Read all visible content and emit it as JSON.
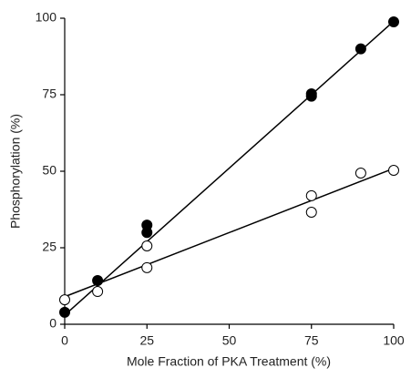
{
  "chart_data": {
    "type": "scatter",
    "x_label": "Mole Fraction of PKA Treatment (%)",
    "y_label": "Phosphorylation (%)",
    "xlim": [
      0,
      100
    ],
    "ylim": [
      0,
      100
    ],
    "xticks": [
      0,
      25,
      50,
      75,
      100
    ],
    "yticks": [
      0,
      25,
      50,
      75,
      100
    ],
    "series": [
      {
        "color": "#000000",
        "fill": "#000000",
        "x": [
          0,
          10,
          25,
          25,
          75,
          75,
          90,
          100
        ],
        "values": [
          3.9,
          14.3,
          32.4,
          30,
          75.3,
          74.5,
          90,
          98.8
        ],
        "fit": {
          "x": [
            0,
            100
          ],
          "values": [
            3,
            99
          ]
        }
      },
      {
        "color": "#000000",
        "fill": "#ffffff",
        "x": [
          0,
          10,
          25,
          25,
          75,
          75,
          90,
          100
        ],
        "values": [
          8,
          10.7,
          25.6,
          18.5,
          42,
          36.6,
          49.4,
          50.3
        ],
        "fit": {
          "x": [
            0,
            100
          ],
          "values": [
            9,
            50.9
          ]
        }
      }
    ]
  }
}
